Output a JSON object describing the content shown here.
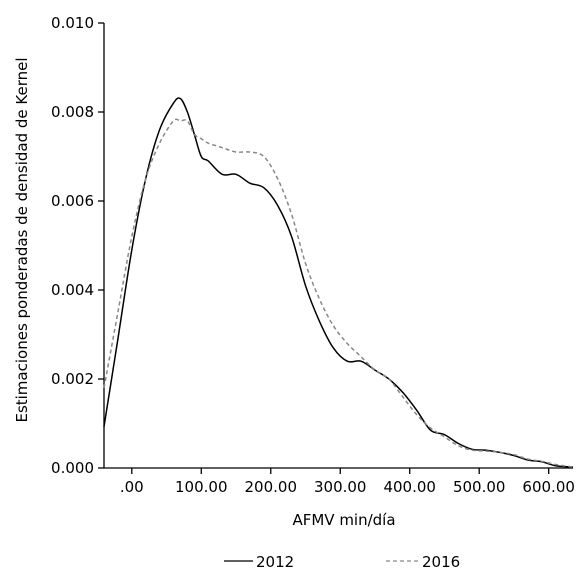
{
  "chart_data": {
    "type": "line",
    "xlabel": "AFMV min/día",
    "ylabel": "Estimaciones ponderadas de densidad de Kernel",
    "xlim": [
      -40,
      635
    ],
    "ylim": [
      0,
      0.01
    ],
    "x_ticks": [
      0,
      100,
      200,
      300,
      400,
      500,
      600
    ],
    "x_tick_labels": [
      ".00",
      "100.00",
      "200.00",
      "300.00",
      "400.00",
      "500.00",
      "600.00"
    ],
    "y_ticks": [
      0,
      0.002,
      0.004,
      0.006,
      0.008,
      0.01
    ],
    "y_tick_labels": [
      "0.000",
      "0.002",
      "0.004",
      "0.006",
      "0.008",
      "0.010"
    ],
    "grid": false,
    "legend_position": "bottom",
    "series": [
      {
        "name": "2012",
        "style": "solid",
        "color": "#000000",
        "x": [
          -40,
          -20,
          0,
          20,
          40,
          60,
          70,
          80,
          90,
          100,
          110,
          130,
          150,
          170,
          190,
          210,
          230,
          250,
          270,
          290,
          310,
          330,
          350,
          370,
          390,
          410,
          430,
          450,
          470,
          490,
          510,
          530,
          550,
          570,
          590,
          610,
          635
        ],
        "y": [
          0.00093,
          0.0029,
          0.0049,
          0.0065,
          0.0076,
          0.0082,
          0.0083,
          0.008,
          0.0075,
          0.007,
          0.0069,
          0.0066,
          0.0066,
          0.0064,
          0.0063,
          0.0059,
          0.0052,
          0.0041,
          0.0033,
          0.0027,
          0.0024,
          0.0024,
          0.0022,
          0.002,
          0.0017,
          0.0013,
          0.00085,
          0.00075,
          0.00055,
          0.00042,
          0.0004,
          0.00035,
          0.00028,
          0.00018,
          0.00014,
          5e-05,
          2e-05
        ]
      },
      {
        "name": "2016",
        "style": "dashed",
        "color": "#888888",
        "x": [
          -40,
          -20,
          0,
          20,
          40,
          60,
          70,
          80,
          90,
          100,
          110,
          130,
          150,
          170,
          190,
          210,
          230,
          250,
          270,
          290,
          310,
          330,
          350,
          370,
          390,
          410,
          430,
          450,
          470,
          490,
          510,
          530,
          550,
          570,
          590,
          610,
          635
        ],
        "y": [
          0.0018,
          0.0035,
          0.0052,
          0.0065,
          0.0073,
          0.0078,
          0.0078,
          0.0078,
          0.0075,
          0.0074,
          0.0073,
          0.0072,
          0.0071,
          0.0071,
          0.007,
          0.0065,
          0.0057,
          0.0046,
          0.0038,
          0.0032,
          0.0028,
          0.0025,
          0.0022,
          0.002,
          0.0016,
          0.0012,
          0.0009,
          0.0007,
          0.0005,
          0.0004,
          0.00038,
          0.00035,
          0.0003,
          0.0002,
          0.00015,
          8e-05,
          2e-05
        ]
      }
    ]
  }
}
